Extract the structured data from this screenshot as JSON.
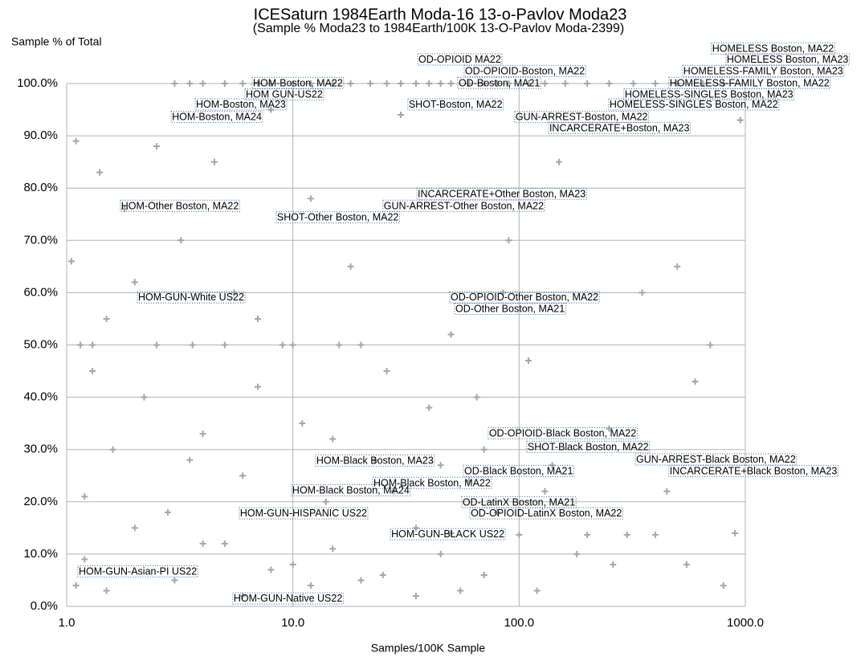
{
  "chart_data": {
    "type": "scatter",
    "title": "ICESaturn 1984Earth Moda-16 13-o-Pavlov Moda23",
    "subtitle": "(Sample % Moda23 to 1984Earth/100K 13-O-Pavlov Moda-2399)",
    "x_label": "Samples/100K Sample",
    "y_label": "Sample % of Total",
    "log_x": true,
    "grid": true,
    "xlim": [
      1,
      1000
    ],
    "ylim": [
      0,
      100
    ],
    "xticks": [
      {
        "value": 1,
        "label": "1.0"
      },
      {
        "value": 10,
        "label": "10.0"
      },
      {
        "value": 100,
        "label": "100.0"
      },
      {
        "value": 1000,
        "label": "1000.0"
      }
    ],
    "yticks": [
      {
        "value": 0,
        "label": "0.0%"
      },
      {
        "value": 10,
        "label": "10.0%"
      },
      {
        "value": 20,
        "label": "20.0%"
      },
      {
        "value": 30,
        "label": "30.0%"
      },
      {
        "value": 40,
        "label": "40.0%"
      },
      {
        "value": 50,
        "label": "50.0%"
      },
      {
        "value": 60,
        "label": "60.0%"
      },
      {
        "value": 70,
        "label": "70.0%"
      },
      {
        "value": 80,
        "label": "80.0%"
      },
      {
        "value": 90,
        "label": "90.0%"
      },
      {
        "value": 100,
        "label": "100.0%"
      }
    ],
    "color": "#a6a6a6",
    "x": [
      3,
      3.5,
      4,
      5,
      6,
      7,
      8,
      10,
      12,
      15,
      18,
      22,
      26,
      30,
      35,
      40,
      45,
      50,
      60,
      70,
      80,
      90,
      110,
      130,
      160,
      200,
      250,
      320,
      400,
      500,
      650,
      800,
      1.05,
      1.1,
      1.15,
      1.2,
      1.3,
      1.4,
      1.5,
      1.6,
      1.8,
      2,
      2.2,
      2.5,
      2.8,
      3.2,
      3.6,
      4,
      4.5,
      5,
      5.5,
      6,
      7,
      8,
      9,
      10,
      11,
      12,
      14,
      16,
      18,
      20,
      23,
      26,
      30,
      35,
      40,
      45,
      50,
      55,
      60,
      70,
      80,
      90,
      100,
      110,
      130,
      150,
      180,
      200,
      250,
      300,
      350,
      400,
      450,
      500,
      550,
      600,
      700,
      800,
      900,
      950,
      1.2,
      1.5,
      2,
      3,
      4,
      6,
      8,
      12,
      15,
      25,
      35,
      50,
      70,
      120,
      1.3,
      2.5,
      5,
      10,
      20,
      1.1,
      3.5,
      7,
      15,
      28,
      45,
      65,
      85,
      140,
      260
    ],
    "values": [
      100,
      100,
      100,
      100,
      100,
      100,
      100,
      100,
      100,
      100,
      100,
      100,
      100,
      100,
      100,
      100,
      100,
      100,
      100,
      100,
      100,
      100,
      100,
      100,
      100,
      100,
      100,
      100,
      100,
      100,
      100,
      100,
      66,
      89,
      50,
      21,
      45,
      83,
      55,
      30,
      76,
      62,
      40,
      88,
      18,
      70,
      50,
      33,
      85,
      12,
      60,
      25,
      42,
      95,
      50,
      8,
      35,
      78,
      20,
      50,
      65,
      5,
      28,
      45,
      94,
      15,
      38,
      10,
      52,
      3,
      24,
      30,
      18,
      70,
      13.7,
      47,
      22,
      85,
      10,
      13.7,
      34,
      13.7,
      60,
      13.7,
      22,
      65,
      8,
      43,
      50,
      4,
      14,
      93,
      9,
      3,
      15,
      5,
      12,
      2,
      7,
      4,
      11,
      6,
      2,
      14,
      6,
      3,
      50,
      50,
      50,
      50,
      50,
      4,
      28,
      55,
      32,
      22,
      27,
      40,
      60,
      27,
      8
    ],
    "annotations": [
      {
        "text": "OD-OPIOID  MA22",
        "x": 35.9,
        "y": 104.5
      },
      {
        "text": "HOMELESS Boston, MA22",
        "x": 714,
        "y": 106.6
      },
      {
        "text": "HOMELESS Boston, MA23",
        "x": 828,
        "y": 104.5
      },
      {
        "text": "HOMELESS-FAMILY Boston, MA23",
        "x": 532,
        "y": 102.3
      },
      {
        "text": "OD-OPIOID-Boston, MA22",
        "x": 57.6,
        "y": 102.3
      },
      {
        "text": "HOM-Boston, MA22",
        "x": 6.66,
        "y": 100
      },
      {
        "text": "OD-Boston, MA21",
        "x": 54,
        "y": 100
      },
      {
        "text": "HOMELESS-FAMILY Boston, MA22",
        "x": 463,
        "y": 100
      },
      {
        "text": "HOM GUN-US22",
        "x": 6.19,
        "y": 97.8
      },
      {
        "text": "HOMELESS-SINGLES Boston, MA23",
        "x": 293,
        "y": 97.8
      },
      {
        "text": "HOM-Boston, MA23",
        "x": 3.73,
        "y": 95.9
      },
      {
        "text": "SHOT-Boston, MA22",
        "x": 32.5,
        "y": 95.9
      },
      {
        "text": "HOMELESS-SINGLES Boston, MA22",
        "x": 251,
        "y": 95.9
      },
      {
        "text": "HOM-Boston, MA24",
        "x": 2.92,
        "y": 93.5
      },
      {
        "text": "GUN-ARREST-Boston, MA22",
        "x": 96.4,
        "y": 93.5
      },
      {
        "text": "INCARCERATE+Boston, MA23",
        "x": 136,
        "y": 91.4
      },
      {
        "text": "INCARCERATE+Other Boston, MA23",
        "x": 35.6,
        "y": 78.8
      },
      {
        "text": "HOM-Other Boston, MA22",
        "x": 1.74,
        "y": 76.5
      },
      {
        "text": "GUN-ARREST-Other Boston, MA22",
        "x": 25.2,
        "y": 76.5
      },
      {
        "text": "SHOT-Other Boston, MA22",
        "x": 8.51,
        "y": 74.3
      },
      {
        "text": "HOM-GUN-White US22",
        "x": 2.07,
        "y": 59
      },
      {
        "text": "OD-OPIOID-Other Boston, MA22",
        "x": 49.8,
        "y": 59
      },
      {
        "text": "OD-Other Boston, MA21",
        "x": 52.3,
        "y": 56.8
      },
      {
        "text": "OD-OPIOID-Black Boston, MA22",
        "x": 73.6,
        "y": 33
      },
      {
        "text": "SHOT-Black Boston, MA22",
        "x": 109,
        "y": 30.4
      },
      {
        "text": "HOM-Black Boston, MA23",
        "x": 12.7,
        "y": 27.8
      },
      {
        "text": "GUN-ARREST-Black Boston, MA22",
        "x": 329,
        "y": 28
      },
      {
        "text": "OD-Black Boston, MA21",
        "x": 57.2,
        "y": 25.8
      },
      {
        "text": "INCARCERATE+Black Boston, MA23",
        "x": 463,
        "y": 25.8
      },
      {
        "text": "HOM-Black Boston, MA22",
        "x": 22.7,
        "y": 23.5
      },
      {
        "text": "HOM-Black Boston, MA24",
        "x": 9.94,
        "y": 22.1
      },
      {
        "text": "OD-LatinX Boston, MA21",
        "x": 56.2,
        "y": 19.8
      },
      {
        "text": "OD-OPIOID-LatinX Boston, MA22",
        "x": 61.1,
        "y": 17.7
      },
      {
        "text": "HOM-GUN-HISPANIC US22",
        "x": 5.84,
        "y": 17.7
      },
      {
        "text": "HOM-GUN-BLACK US22",
        "x": 27.2,
        "y": 13.7
      },
      {
        "text": "HOM-GUN-Asian-PI US22",
        "x": 1.13,
        "y": 6.6
      },
      {
        "text": "HOM-GUN-Native US22",
        "x": 5.47,
        "y": 1.4
      }
    ]
  }
}
